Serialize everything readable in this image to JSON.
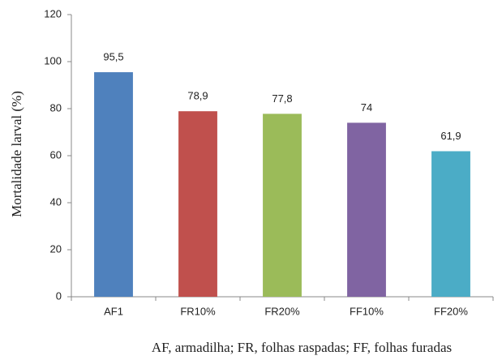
{
  "chart_data": {
    "type": "bar",
    "y_label": "Mortalidade larval (%)",
    "x_caption": "AF, armadilha; FR, folhas raspadas; FF, folhas furadas",
    "categories": [
      "AF1",
      "FR10%",
      "FR20%",
      "FF10%",
      "FF20%"
    ],
    "values": [
      95.5,
      78.9,
      77.8,
      74,
      61.9
    ],
    "value_labels": [
      "95,5",
      "78,9",
      "77,8",
      "74",
      "61,9"
    ],
    "colors": [
      "#4f81bd",
      "#c0504d",
      "#9bbb59",
      "#8064a2",
      "#4bacc6"
    ],
    "ylim": [
      0,
      120
    ],
    "yticks": [
      0,
      20,
      40,
      60,
      80,
      100,
      120
    ],
    "grid": false
  }
}
